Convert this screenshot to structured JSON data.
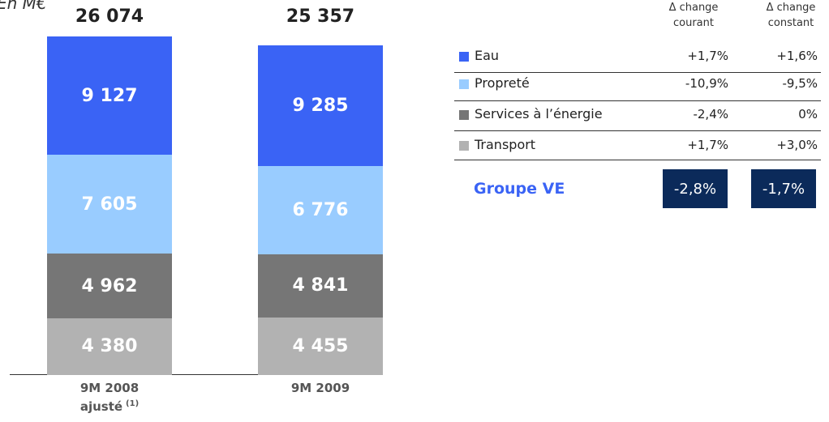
{
  "chart_data": {
    "type": "stacked_bar",
    "title": "En M€",
    "categories": [
      "9M 2008 ajusté",
      "9M 2009"
    ],
    "category_notes": [
      "(1)",
      null
    ],
    "totals": [
      26074,
      25357
    ],
    "total_labels": [
      "26 074",
      "25 357"
    ],
    "series": [
      {
        "name": "Eau",
        "color": "#3a63f5",
        "values": [
          9127,
          9285
        ],
        "value_labels": [
          "9 127",
          "9 285"
        ]
      },
      {
        "name": "Propreté",
        "color": "#99ccff",
        "values": [
          7605,
          6776
        ],
        "value_labels": [
          "7 605",
          "6 776"
        ]
      },
      {
        "name": "Services à l’énergie",
        "color": "#767676",
        "values": [
          4962,
          4841
        ],
        "value_labels": [
          "4 962",
          "4 841"
        ]
      },
      {
        "name": "Transport",
        "color": "#b2b2b2",
        "values": [
          4380,
          4455
        ],
        "value_labels": [
          "4 380",
          "4 455"
        ]
      }
    ]
  },
  "table": {
    "columns": [
      "Δ change courant",
      "Δ change constant"
    ],
    "rows": [
      [
        "+1,7%",
        "+1,6%"
      ],
      [
        "-10,9%",
        "-9,5%"
      ],
      [
        "-2,4%",
        "0%"
      ],
      [
        "+1,7%",
        "+3,0%"
      ]
    ],
    "group": {
      "name": "Groupe VE",
      "values": [
        "-2,8%",
        "-1,7%"
      ]
    }
  }
}
